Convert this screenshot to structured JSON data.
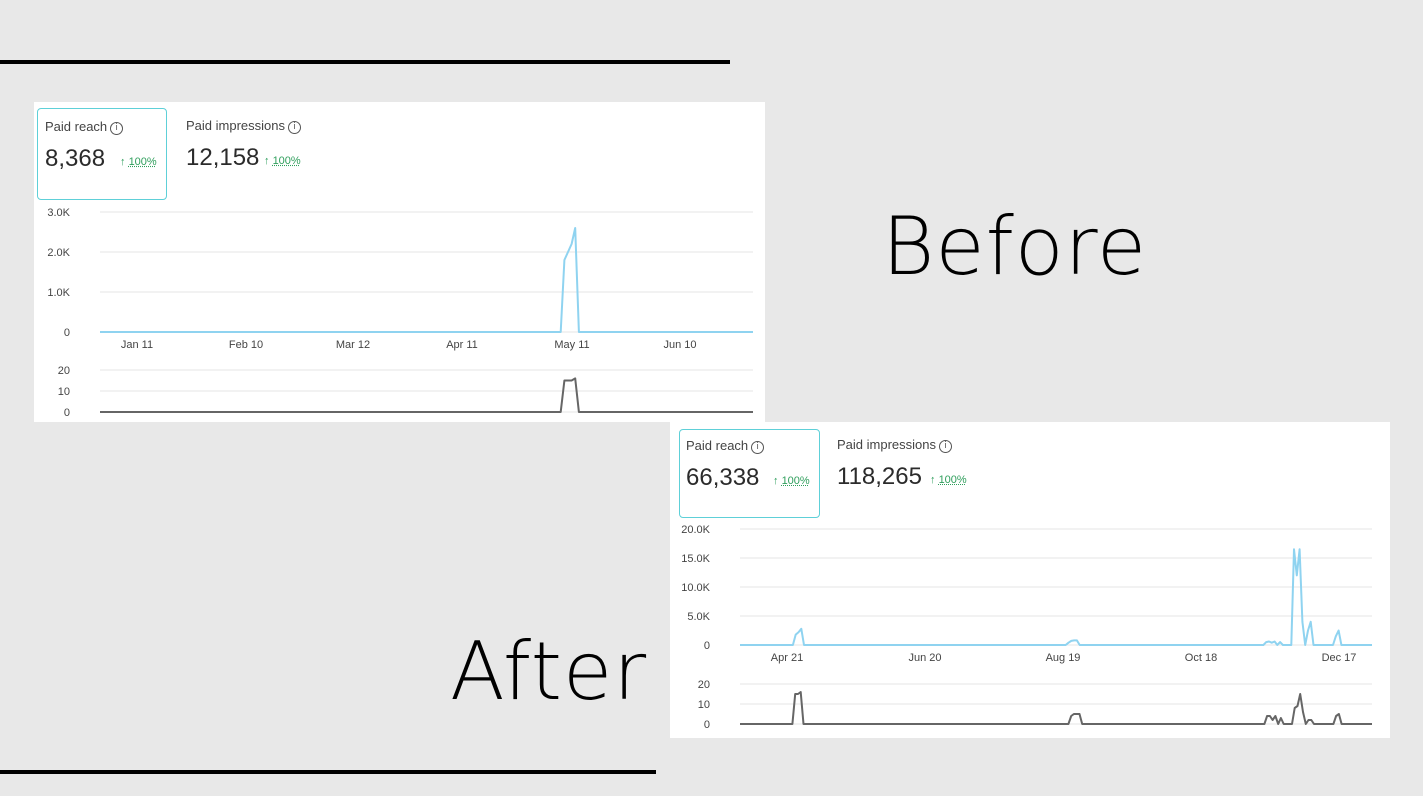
{
  "before": {
    "label": "Before",
    "metrics": [
      {
        "label": "Paid reach",
        "value": "8,368",
        "arrow": "↑",
        "change": "100%"
      },
      {
        "label": "Paid impressions",
        "value": "12,158",
        "arrow": "↑",
        "change": "100%"
      }
    ]
  },
  "after": {
    "label": "After",
    "metrics": [
      {
        "label": "Paid reach",
        "value": "66,338",
        "arrow": "↑",
        "change": "100%"
      },
      {
        "label": "Paid impressions",
        "value": "118,265",
        "arrow": "↑",
        "change": "100%"
      }
    ]
  },
  "info_icon": "info-circle-icon",
  "colors": {
    "reach_line": "#8fd3f0",
    "bottom_line": "#666666",
    "active_border": "#5ed0d8",
    "change_green": "#2e9e5b"
  },
  "chart_data": [
    {
      "type": "line",
      "title": "",
      "series": [
        {
          "name": "Paid reach",
          "values": [
            0,
            0,
            0,
            0,
            0,
            0,
            0,
            0,
            0,
            0,
            0,
            0,
            0,
            0,
            0,
            0,
            0,
            0,
            0,
            0,
            0,
            0,
            0,
            0,
            0,
            0,
            0,
            0,
            0,
            0,
            0,
            0,
            0,
            0,
            0,
            0,
            0,
            0,
            0,
            0,
            0,
            0,
            0,
            0,
            0,
            0,
            0,
            0,
            0,
            0,
            0,
            0,
            0,
            0,
            0,
            0,
            0,
            0,
            0,
            0,
            0,
            0,
            0,
            0,
            0,
            0,
            0,
            0,
            0,
            0,
            0,
            0,
            0,
            0,
            0,
            0,
            0,
            0,
            0,
            0,
            0,
            0,
            0,
            0,
            0,
            0,
            0,
            0,
            0,
            0,
            0,
            0,
            0,
            0,
            0,
            0,
            0,
            0,
            0,
            0,
            0,
            0,
            0,
            0,
            0,
            0,
            0,
            0,
            0,
            0,
            0,
            0,
            0,
            0,
            0,
            0,
            0,
            0,
            0,
            0,
            0,
            0,
            0,
            0,
            0,
            0,
            0,
            0,
            1800,
            2000,
            2200,
            2600,
            0,
            0,
            0,
            0,
            0,
            0,
            0,
            0,
            0,
            0,
            0,
            0,
            0,
            0,
            0,
            0,
            0,
            0,
            0,
            0,
            0,
            0,
            0,
            0,
            0,
            0,
            0,
            0,
            0,
            0,
            0,
            0,
            0,
            0,
            0,
            0,
            0,
            0,
            0,
            0,
            0,
            0,
            0,
            0,
            0,
            0,
            0,
            0,
            0
          ]
        }
      ],
      "x_ticks": [
        "Jan 11",
        "Feb 10",
        "Mar 12",
        "Apr 11",
        "May 11",
        "Jun 10"
      ],
      "y_ticks": [
        "3.0K",
        "2.0K",
        "1.0K",
        "0"
      ],
      "ylim": [
        0,
        3000
      ]
    },
    {
      "type": "line",
      "title": "",
      "series": [
        {
          "name": "",
          "values": [
            0,
            0,
            0,
            0,
            0,
            0,
            0,
            0,
            0,
            0,
            0,
            0,
            0,
            0,
            0,
            0,
            0,
            0,
            0,
            0,
            0,
            0,
            0,
            0,
            0,
            0,
            0,
            0,
            0,
            0,
            0,
            0,
            0,
            0,
            0,
            0,
            0,
            0,
            0,
            0,
            0,
            0,
            0,
            0,
            0,
            0,
            0,
            0,
            0,
            0,
            0,
            0,
            0,
            0,
            0,
            0,
            0,
            0,
            0,
            0,
            0,
            0,
            0,
            0,
            0,
            0,
            0,
            0,
            0,
            0,
            0,
            0,
            0,
            0,
            0,
            0,
            0,
            0,
            0,
            0,
            0,
            0,
            0,
            0,
            0,
            0,
            0,
            0,
            0,
            0,
            0,
            0,
            0,
            0,
            0,
            0,
            0,
            0,
            0,
            0,
            0,
            0,
            0,
            0,
            0,
            0,
            0,
            0,
            0,
            0,
            0,
            0,
            0,
            0,
            0,
            0,
            0,
            0,
            0,
            0,
            0,
            0,
            0,
            0,
            0,
            0,
            0,
            0,
            15,
            15,
            15,
            16,
            0,
            0,
            0,
            0,
            0,
            0,
            0,
            0,
            0,
            0,
            0,
            0,
            0,
            0,
            0,
            0,
            0,
            0,
            0,
            0,
            0,
            0,
            0,
            0,
            0,
            0,
            0,
            0,
            0,
            0,
            0,
            0,
            0,
            0,
            0,
            0,
            0,
            0,
            0,
            0,
            0,
            0,
            0,
            0,
            0,
            0,
            0,
            0,
            0
          ]
        }
      ],
      "y_ticks": [
        "20",
        "10",
        "0"
      ],
      "ylim": [
        0,
        20
      ]
    },
    {
      "type": "line",
      "title": "",
      "series": [
        {
          "name": "Paid reach",
          "values": [
            0,
            0,
            0,
            0,
            0,
            0,
            0,
            0,
            0,
            0,
            0,
            0,
            0,
            0,
            0,
            0,
            0,
            0,
            0,
            0,
            1800,
            2200,
            2800,
            0,
            0,
            0,
            0,
            0,
            0,
            0,
            0,
            0,
            0,
            0,
            0,
            0,
            0,
            0,
            0,
            0,
            0,
            0,
            0,
            0,
            0,
            0,
            0,
            0,
            0,
            0,
            0,
            0,
            0,
            0,
            0,
            0,
            0,
            0,
            0,
            0,
            0,
            0,
            0,
            0,
            0,
            0,
            0,
            0,
            0,
            0,
            0,
            0,
            0,
            0,
            0,
            0,
            0,
            0,
            0,
            0,
            0,
            0,
            0,
            0,
            0,
            0,
            0,
            0,
            0,
            0,
            0,
            0,
            0,
            0,
            0,
            0,
            0,
            0,
            0,
            0,
            0,
            0,
            0,
            0,
            0,
            0,
            0,
            0,
            0,
            0,
            0,
            0,
            0,
            0,
            0,
            0,
            0,
            0,
            400,
            700,
            800,
            800,
            0,
            0,
            0,
            0,
            0,
            0,
            0,
            0,
            0,
            0,
            0,
            0,
            0,
            0,
            0,
            0,
            0,
            0,
            0,
            0,
            0,
            0,
            0,
            0,
            0,
            0,
            0,
            0,
            0,
            0,
            0,
            0,
            0,
            0,
            0,
            0,
            0,
            0,
            0,
            0,
            0,
            0,
            0,
            0,
            0,
            0,
            0,
            0,
            0,
            0,
            0,
            0,
            0,
            0,
            0,
            0,
            0,
            0,
            0,
            0,
            0,
            0,
            0,
            0,
            0,
            0,
            0,
            500,
            600,
            400,
            600,
            0,
            500,
            0,
            0,
            0,
            0,
            16500,
            12000,
            16500,
            4000,
            0,
            2500,
            4000,
            0,
            0,
            0,
            0,
            0,
            0,
            0,
            0,
            1500,
            2500,
            0,
            0,
            0,
            0,
            0,
            0,
            0,
            0,
            0,
            0,
            0,
            0
          ]
        }
      ],
      "x_ticks": [
        "Apr 21",
        "Jun 20",
        "Aug 19",
        "Oct 18",
        "Dec 17"
      ],
      "y_ticks": [
        "20.0K",
        "15.0K",
        "10.0K",
        "5.0K",
        "0"
      ],
      "ylim": [
        0,
        20000
      ]
    },
    {
      "type": "line",
      "title": "",
      "series": [
        {
          "name": "",
          "values": [
            0,
            0,
            0,
            0,
            0,
            0,
            0,
            0,
            0,
            0,
            0,
            0,
            0,
            0,
            0,
            0,
            0,
            0,
            0,
            0,
            15,
            15,
            16,
            0,
            0,
            0,
            0,
            0,
            0,
            0,
            0,
            0,
            0,
            0,
            0,
            0,
            0,
            0,
            0,
            0,
            0,
            0,
            0,
            0,
            0,
            0,
            0,
            0,
            0,
            0,
            0,
            0,
            0,
            0,
            0,
            0,
            0,
            0,
            0,
            0,
            0,
            0,
            0,
            0,
            0,
            0,
            0,
            0,
            0,
            0,
            0,
            0,
            0,
            0,
            0,
            0,
            0,
            0,
            0,
            0,
            0,
            0,
            0,
            0,
            0,
            0,
            0,
            0,
            0,
            0,
            0,
            0,
            0,
            0,
            0,
            0,
            0,
            0,
            0,
            0,
            0,
            0,
            0,
            0,
            0,
            0,
            0,
            0,
            0,
            0,
            0,
            0,
            0,
            0,
            0,
            0,
            0,
            0,
            0,
            0,
            4,
            5,
            5,
            5,
            0,
            0,
            0,
            0,
            0,
            0,
            0,
            0,
            0,
            0,
            0,
            0,
            0,
            0,
            0,
            0,
            0,
            0,
            0,
            0,
            0,
            0,
            0,
            0,
            0,
            0,
            0,
            0,
            0,
            0,
            0,
            0,
            0,
            0,
            0,
            0,
            0,
            0,
            0,
            0,
            0,
            0,
            0,
            0,
            0,
            0,
            0,
            0,
            0,
            0,
            0,
            0,
            0,
            0,
            0,
            0,
            0,
            0,
            0,
            0,
            0,
            0,
            0,
            0,
            0,
            0,
            0,
            4,
            4,
            2,
            4,
            0,
            3,
            0,
            0,
            0,
            0,
            8,
            9,
            15,
            6,
            0,
            2,
            2,
            0,
            0,
            0,
            0,
            0,
            0,
            0,
            0,
            4,
            5,
            0,
            0,
            0,
            0,
            0,
            0,
            0,
            0,
            0,
            0,
            0,
            0
          ]
        }
      ],
      "y_ticks": [
        "20",
        "10",
        "0"
      ],
      "ylim": [
        0,
        20
      ]
    }
  ]
}
